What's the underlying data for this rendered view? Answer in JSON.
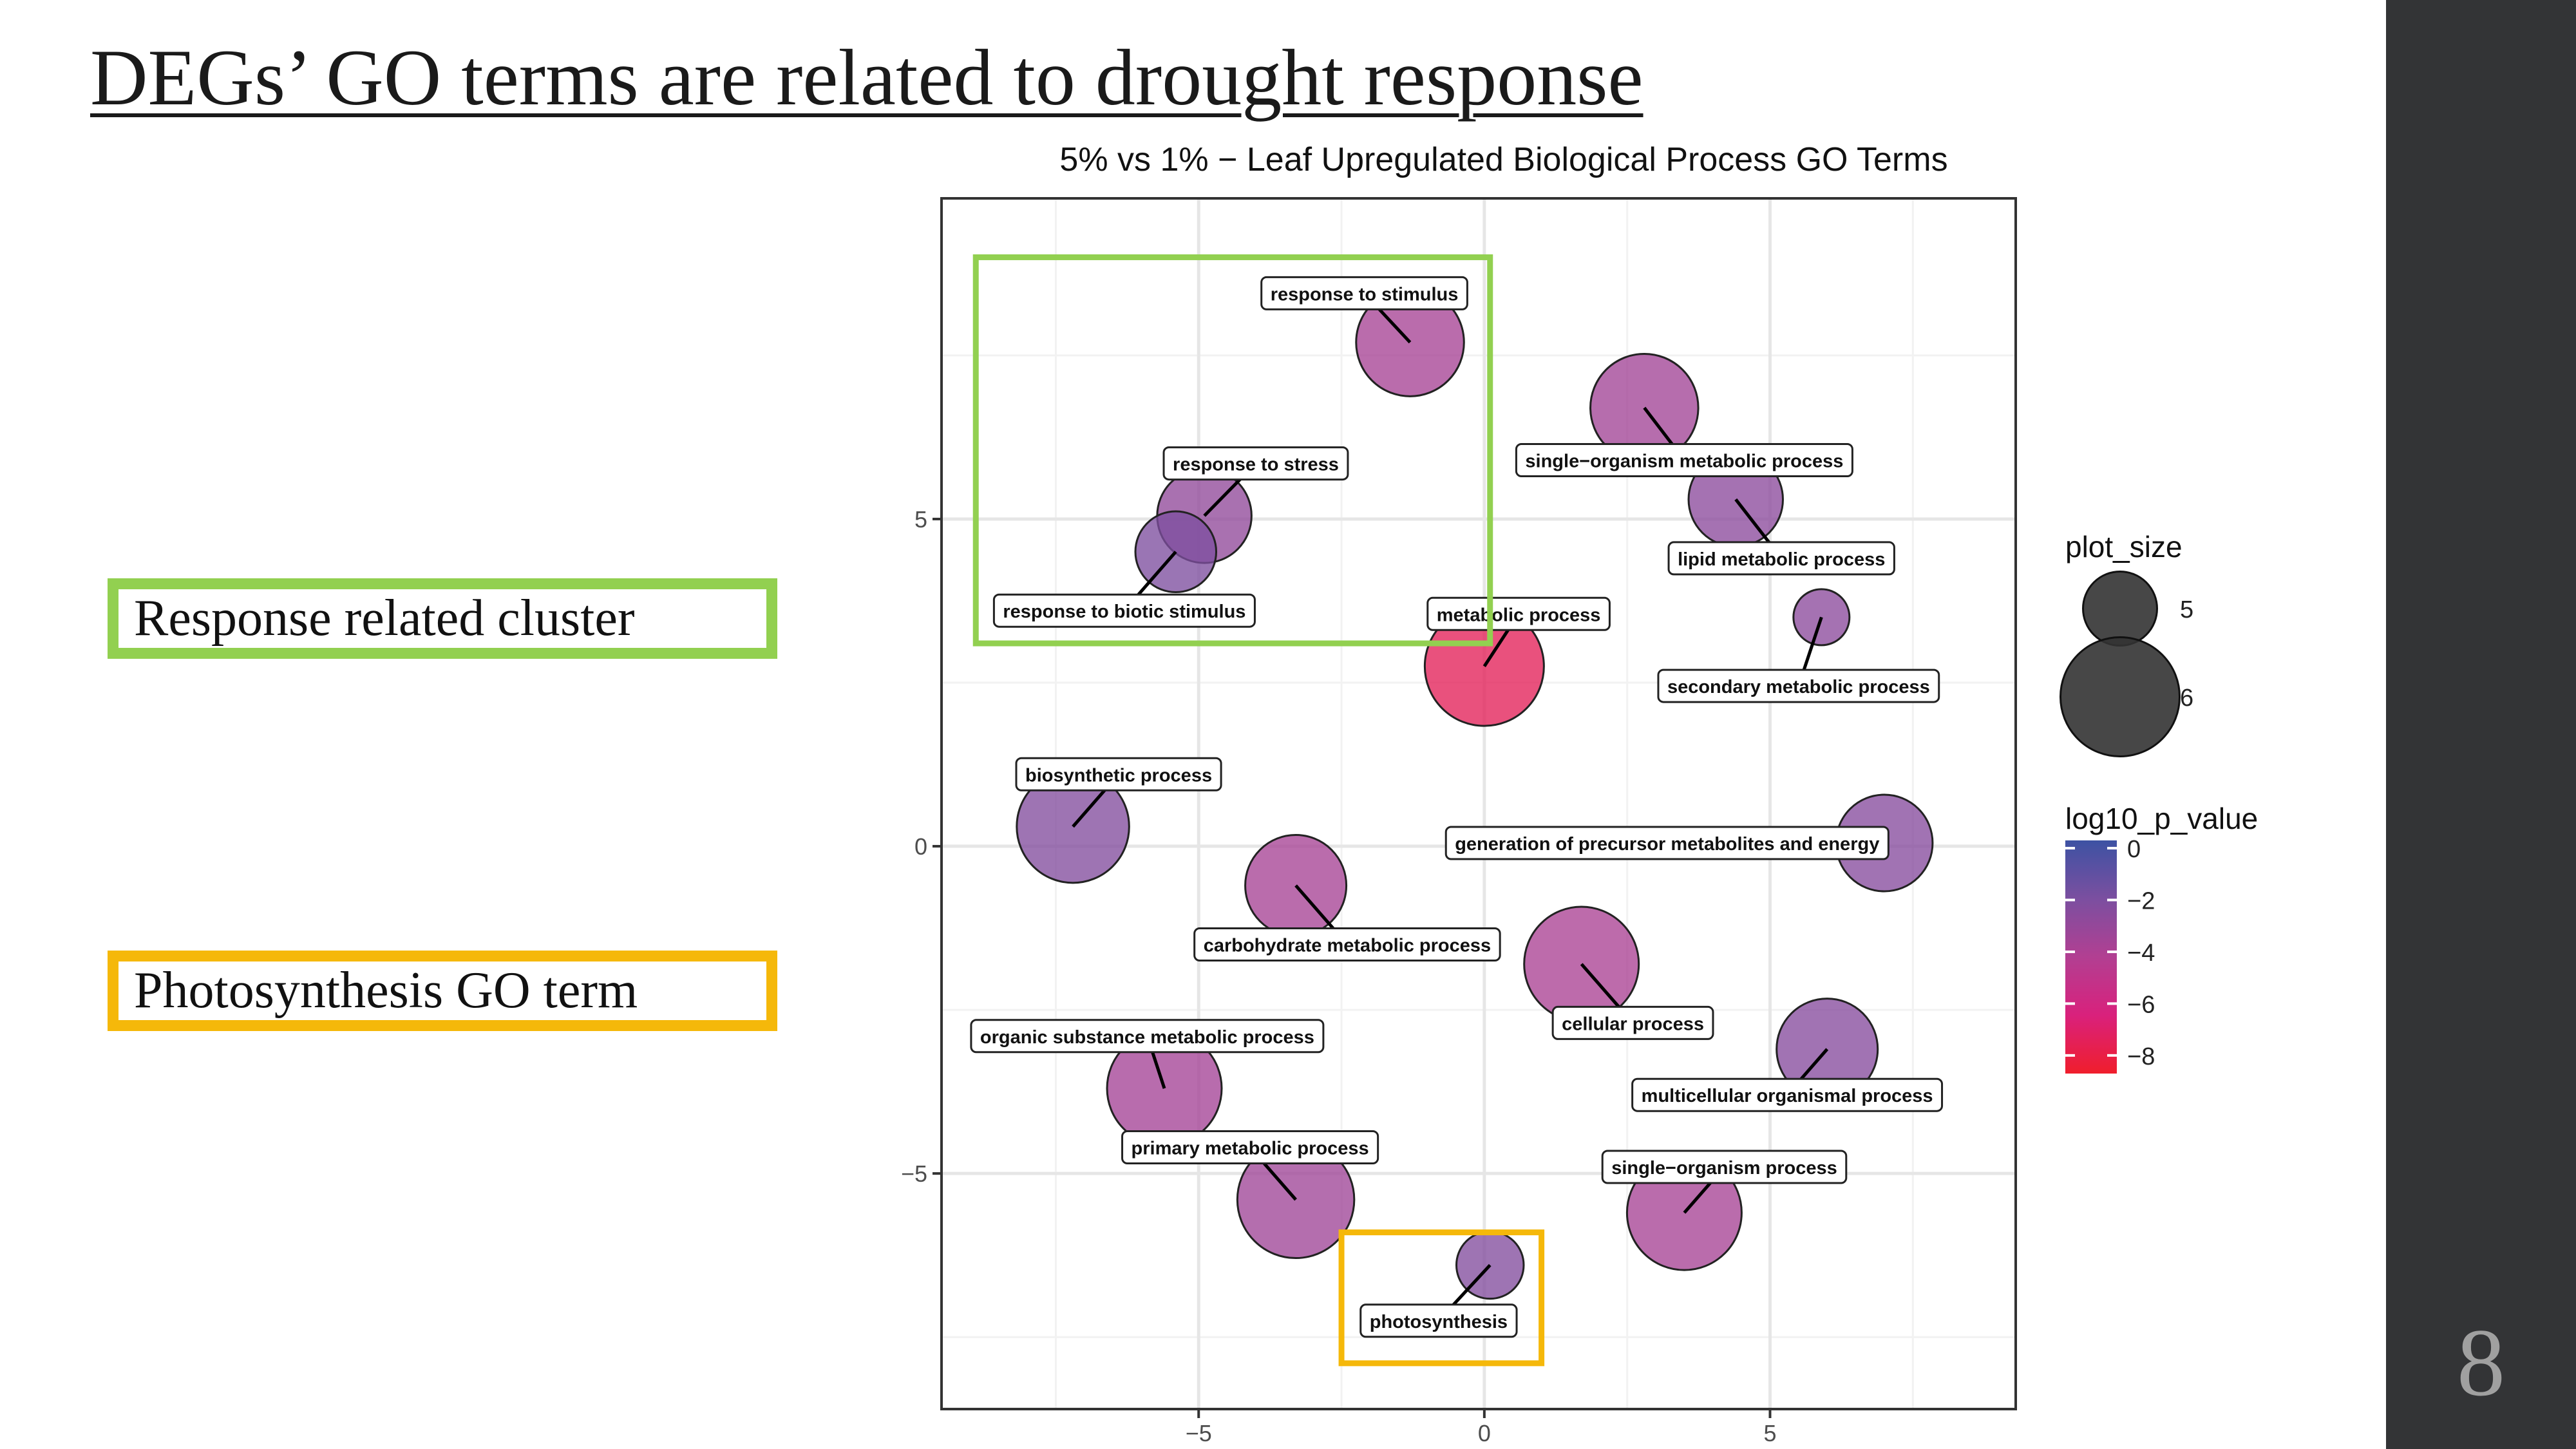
{
  "slide": {
    "title": "DEGs’ GO terms are related to drought response",
    "page_number": "8"
  },
  "callouts": {
    "response": "Response related cluster",
    "photosynthesis": "Photosynthesis GO term"
  },
  "colors": {
    "green_box": "#92d050",
    "yellow_box": "#f5b80a",
    "sidebar": "#333436"
  },
  "chart_data": {
    "type": "scatter",
    "title": "5% vs 1% − Leaf Upregulated Biological Process GO Terms",
    "xlabel": "",
    "ylabel": "",
    "xlim": [
      -9.5,
      9.3
    ],
    "ylim": [
      -8.6,
      9.9
    ],
    "x_ticks": [
      {
        "value": -5,
        "label": "−5"
      },
      {
        "value": 0,
        "label": "0"
      },
      {
        "value": 5,
        "label": "5"
      }
    ],
    "y_ticks": [
      {
        "value": 5,
        "label": "5"
      },
      {
        "value": 0,
        "label": "0"
      },
      {
        "value": -5,
        "label": "−5"
      }
    ],
    "grid": true,
    "legend": {
      "placement": "right",
      "size_title": "plot_size",
      "size_items": [
        {
          "label": "5",
          "size": 5
        },
        {
          "label": "6",
          "size": 6
        }
      ],
      "color_title": "log10_p_value",
      "color_ticks": [
        {
          "value": 0,
          "label": "0"
        },
        {
          "value": -2,
          "label": "−2"
        },
        {
          "value": -4,
          "label": "−4"
        },
        {
          "value": -6,
          "label": "−6"
        },
        {
          "value": -8,
          "label": "−8"
        }
      ],
      "color_range": [
        -8.7,
        0.3
      ]
    },
    "points": [
      {
        "name": "response to stimulus",
        "x": -1.3,
        "y": 7.7,
        "size": 5.75,
        "log10_p_value": -3.6,
        "label_x": -2.1,
        "label_y": 8.45
      },
      {
        "name": "single−organism metabolic process",
        "x": 2.8,
        "y": 6.7,
        "size": 5.75,
        "log10_p_value": -3.4,
        "label_x": 3.5,
        "label_y": 5.9
      },
      {
        "name": "response to stress",
        "x": -4.9,
        "y": 5.05,
        "size": 5.45,
        "log10_p_value": -2.8,
        "label_x": -4.0,
        "label_y": 5.85
      },
      {
        "name": "lipid metabolic process",
        "x": 4.4,
        "y": 5.3,
        "size": 5.45,
        "log10_p_value": -2.6,
        "label_x": 5.2,
        "label_y": 4.4
      },
      {
        "name": "response to biotic stimulus",
        "x": -5.4,
        "y": 4.5,
        "size": 5.15,
        "log10_p_value": -2.1,
        "label_x": -6.3,
        "label_y": 3.6
      },
      {
        "name": "metabolic process",
        "x": 0,
        "y": 2.75,
        "size": 6.0,
        "log10_p_value": -7.2,
        "label_x": 0.6,
        "label_y": 3.55
      },
      {
        "name": "secondary metabolic process",
        "x": 5.9,
        "y": 3.5,
        "size": 4.6,
        "log10_p_value": -2.6,
        "label_x": 5.5,
        "label_y": 2.45
      },
      {
        "name": "biosynthetic process",
        "x": -7.2,
        "y": 0.3,
        "size": 5.85,
        "log10_p_value": -2.3,
        "label_x": -6.4,
        "label_y": 1.1
      },
      {
        "name": "generation of precursor metabolites and energy",
        "x": 7.0,
        "y": 0.05,
        "size": 5.5,
        "log10_p_value": -2.4,
        "label_x": 3.2,
        "label_y": 0.05
      },
      {
        "name": "carbohydrate metabolic process",
        "x": -3.3,
        "y": -0.6,
        "size": 5.6,
        "log10_p_value": -3.6,
        "label_x": -2.4,
        "label_y": -1.5
      },
      {
        "name": "cellular process",
        "x": 1.7,
        "y": -1.8,
        "size": 5.9,
        "log10_p_value": -3.7,
        "label_x": 2.6,
        "label_y": -2.7
      },
      {
        "name": "organic substance metabolic process",
        "x": -5.6,
        "y": -3.7,
        "size": 5.9,
        "log10_p_value": -3.5,
        "label_x": -5.9,
        "label_y": -2.9
      },
      {
        "name": "multicellular organismal process",
        "x": 6.0,
        "y": -3.1,
        "size": 5.6,
        "log10_p_value": -2.4,
        "label_x": 5.3,
        "label_y": -3.8
      },
      {
        "name": "primary metabolic process",
        "x": -3.3,
        "y": -5.4,
        "size": 5.95,
        "log10_p_value": -3.3,
        "label_x": -4.1,
        "label_y": -4.6
      },
      {
        "name": "single−organism process",
        "x": 3.5,
        "y": -5.6,
        "size": 5.9,
        "log10_p_value": -3.6,
        "label_x": 4.2,
        "label_y": -4.9
      },
      {
        "name": "photosynthesis",
        "x": 0.1,
        "y": -6.4,
        "size": 4.85,
        "log10_p_value": -2.3,
        "label_x": -0.8,
        "label_y": -7.25
      }
    ],
    "highlight_regions": [
      {
        "name": "response cluster",
        "x0": -8.9,
        "x1": 0.1,
        "y0": 3.1,
        "y1": 9.0,
        "color": "#92d050"
      },
      {
        "name": "photosynthesis",
        "x0": -2.5,
        "x1": 1.0,
        "y0": -7.9,
        "y1": -5.9,
        "color": "#f5b80a"
      }
    ]
  }
}
